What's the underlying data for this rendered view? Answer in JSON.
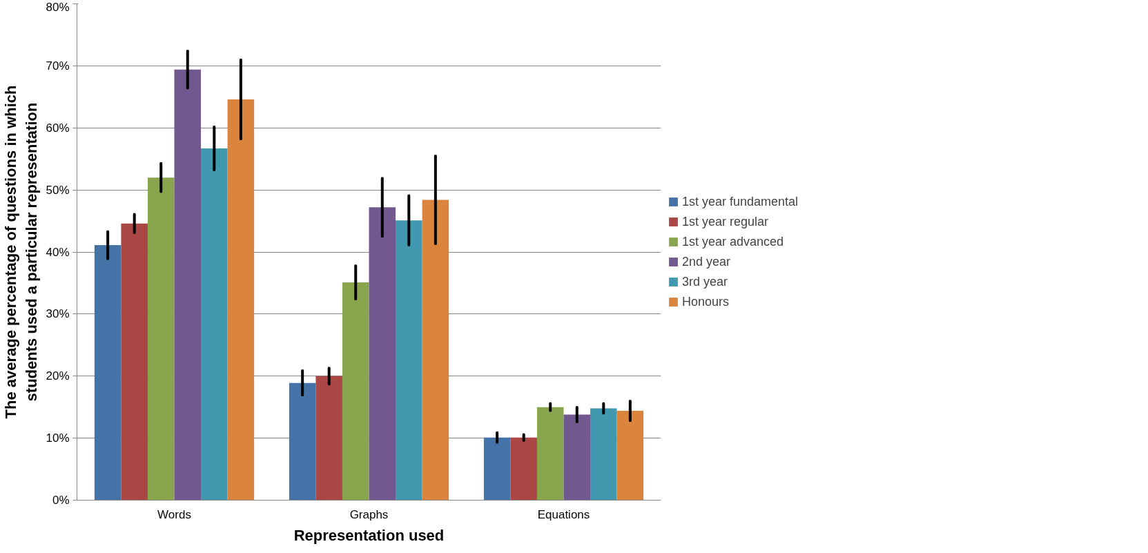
{
  "chart_data": {
    "type": "bar",
    "xlabel": "Representation used",
    "ylabel": "The average percentage of questions in which students used a particular representation",
    "categories": [
      "Words",
      "Graphs",
      "Equations"
    ],
    "series": [
      {
        "name": "1st year fundamental",
        "color": "#4572a7",
        "values": [
          41.1,
          18.9,
          10.1
        ],
        "errors": [
          2.2,
          2.0,
          0.8
        ]
      },
      {
        "name": "1st year regular",
        "color": "#aa4643",
        "values": [
          44.6,
          20.0,
          10.1
        ],
        "errors": [
          1.5,
          1.3,
          0.5
        ]
      },
      {
        "name": "1st year advanced",
        "color": "#89a54e",
        "values": [
          52.0,
          35.1,
          15.0
        ],
        "errors": [
          2.3,
          2.7,
          0.6
        ]
      },
      {
        "name": "2nd year",
        "color": "#71588f",
        "values": [
          69.4,
          47.2,
          13.8
        ],
        "errors": [
          3.0,
          4.7,
          1.2
        ]
      },
      {
        "name": "3rd year",
        "color": "#4198af",
        "values": [
          56.7,
          45.1,
          14.8
        ],
        "errors": [
          3.5,
          4.0,
          0.8
        ]
      },
      {
        "name": "Honours",
        "color": "#db843d",
        "values": [
          64.6,
          48.4,
          14.4
        ],
        "errors": [
          6.4,
          7.1,
          1.6
        ]
      }
    ],
    "ylim": [
      0,
      80
    ],
    "yticks": [
      {
        "value": 0,
        "label": "0%"
      },
      {
        "value": 10,
        "label": "10%"
      },
      {
        "value": 20,
        "label": "20%"
      },
      {
        "value": 30,
        "label": "30%"
      },
      {
        "value": 40,
        "label": "40%"
      },
      {
        "value": 50,
        "label": "50%"
      },
      {
        "value": 60,
        "label": "60%"
      },
      {
        "value": 70,
        "label": "70%"
      },
      {
        "value": 80,
        "label": "80%"
      }
    ],
    "grid": "y",
    "legend": "right"
  }
}
